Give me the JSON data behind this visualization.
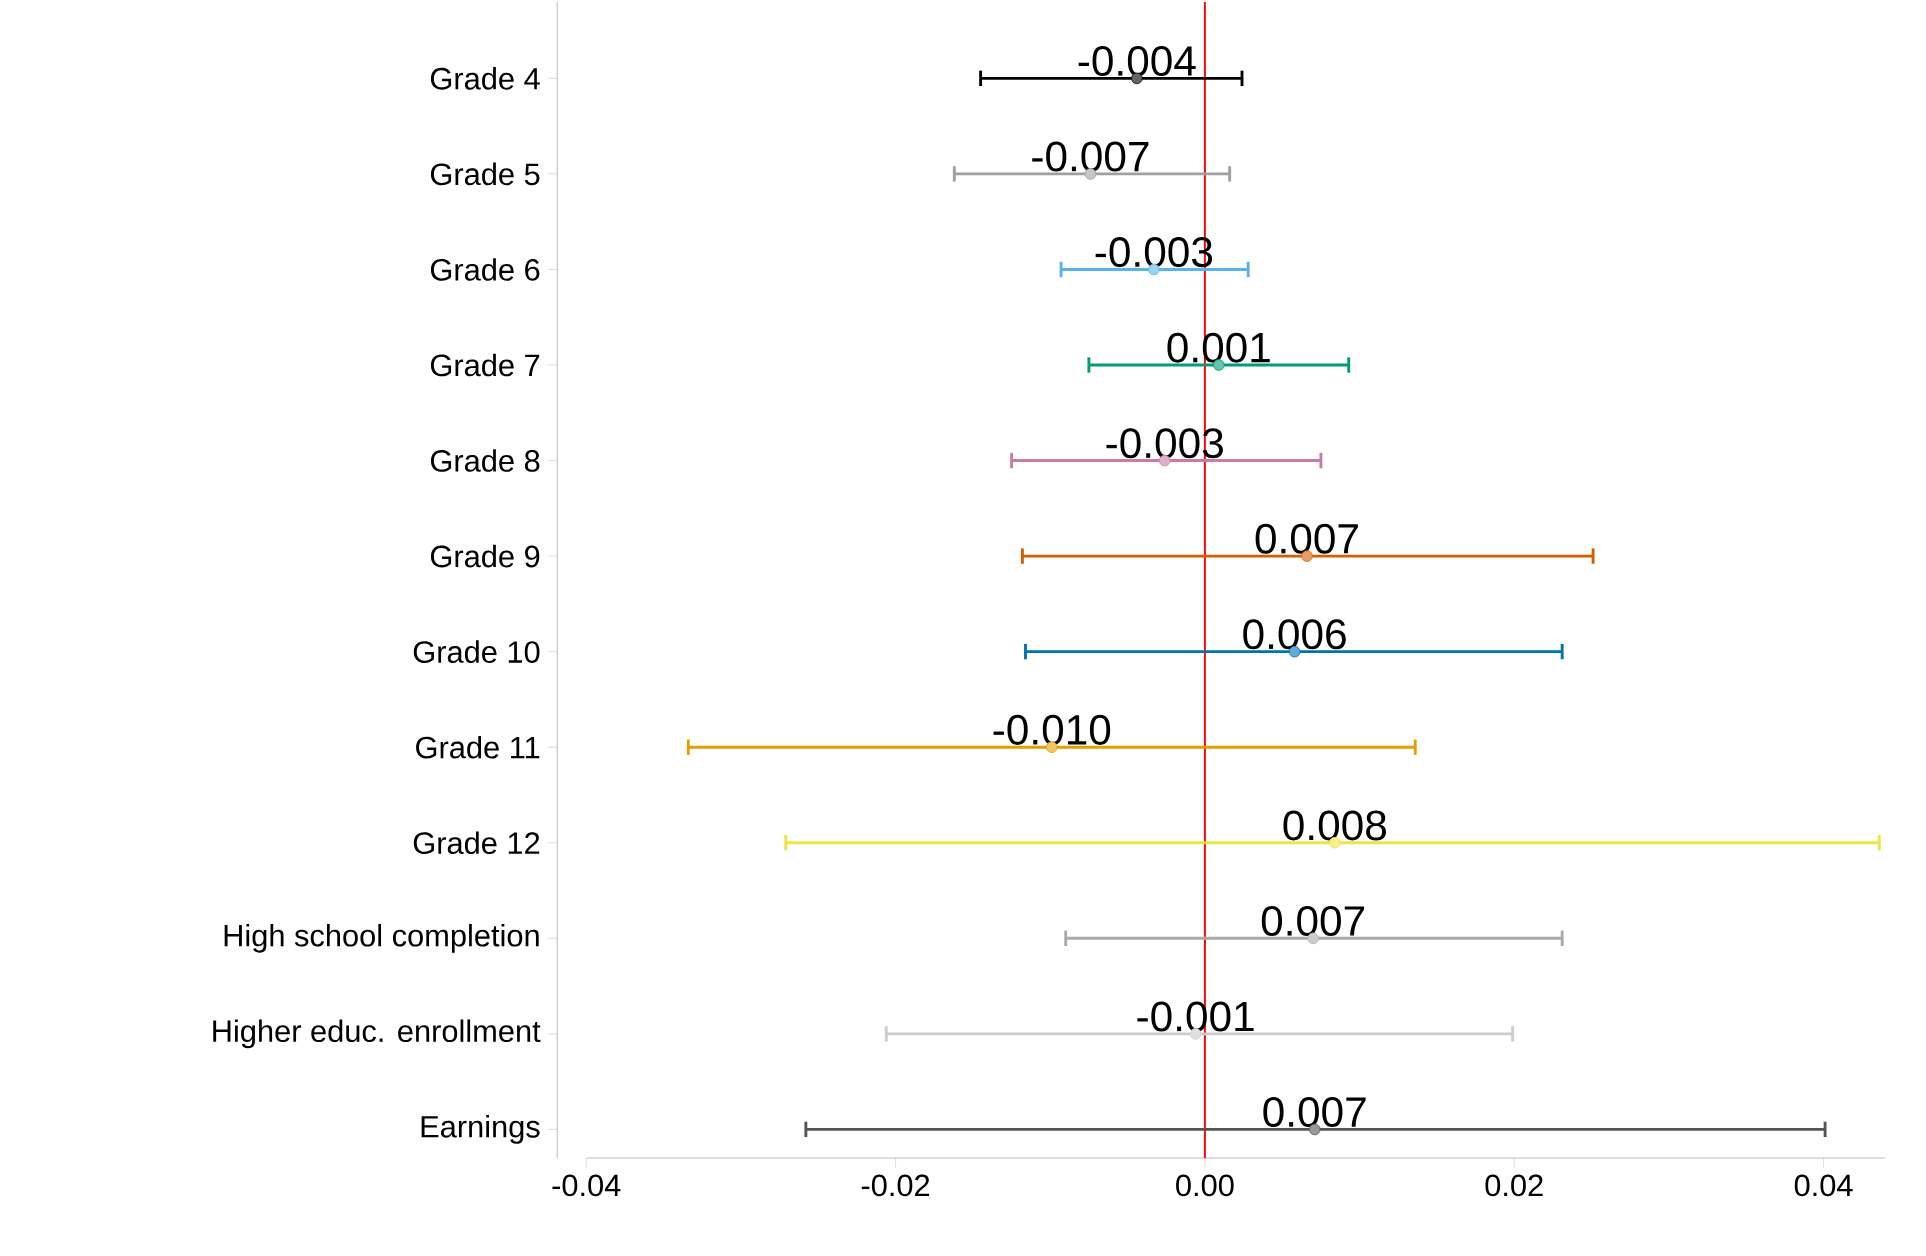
{
  "chart_data": {
    "type": "scatter",
    "orientation": "horizontal",
    "categories": [
      "Grade 4",
      "Grade 5",
      "Grade 6",
      "Grade 7",
      "Grade 8",
      "Grade 9",
      "Grade 10",
      "Grade 11",
      "Grade 12",
      "High school completion",
      "Higher educ. enrollment",
      "Earnings"
    ],
    "values": [
      -0.0044,
      -0.0074,
      -0.0033,
      0.0009,
      -0.0026,
      0.0066,
      0.0058,
      -0.0099,
      0.0084,
      0.007,
      -0.0006,
      0.0071
    ],
    "errors": [
      [
        -0.0145,
        0.0024
      ],
      [
        -0.0162,
        0.0016
      ],
      [
        -0.0093,
        0.0028
      ],
      [
        -0.0075,
        0.0093
      ],
      [
        -0.0125,
        0.0075
      ],
      [
        -0.0118,
        0.0251
      ],
      [
        -0.0116,
        0.0231
      ],
      [
        -0.0334,
        0.0136
      ],
      [
        -0.0271,
        0.0436
      ],
      [
        -0.009,
        0.0231
      ],
      [
        -0.0206,
        0.0199
      ],
      [
        -0.0258,
        0.0401
      ]
    ],
    "value_labels": [
      "-0.004",
      "-0.007",
      "-0.003",
      "0.001",
      "-0.003",
      "0.007",
      "0.006",
      "-0.010",
      "0.008",
      "0.007",
      "-0.001",
      "0.007"
    ],
    "colors": [
      "#000000",
      "#a0a0a0",
      "#56b4e9",
      "#009e73",
      "#cc79a7",
      "#d55e00",
      "#0072b2",
      "#e69f00",
      "#f0e442",
      "#aaaaaa",
      "#cccccc",
      "#555555"
    ],
    "marker": "circle",
    "xlim": [
      -0.04,
      0.044
    ],
    "xticks": [
      -0.04,
      -0.02,
      {
        "value": 0,
        "label": "0.00"
      },
      0.02,
      0.04
    ],
    "ref_lines": [
      {
        "axis": "x",
        "value": 0,
        "color": "#ff0000"
      }
    ]
  }
}
